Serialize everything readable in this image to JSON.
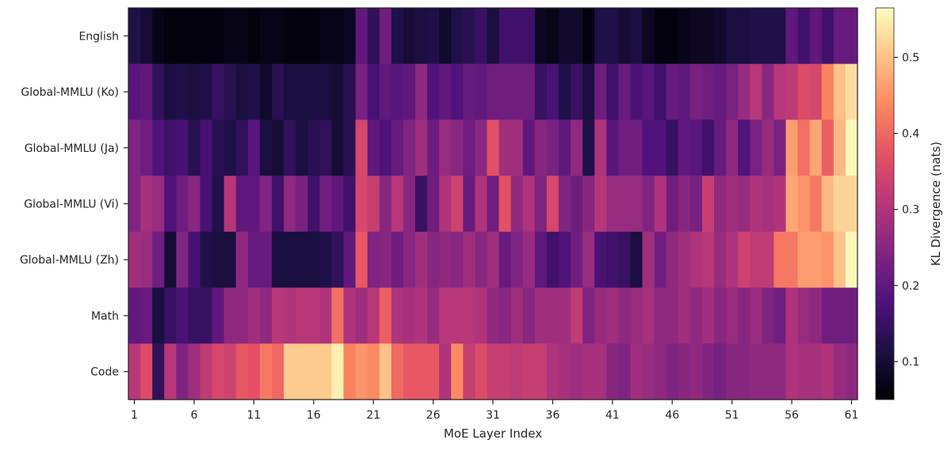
{
  "chart_data": {
    "type": "heatmap",
    "title": "",
    "xlabel": "MoE Layer Index",
    "ylabel": "",
    "colorbar_label": "KL Divergence (nats)",
    "colormap": "magma",
    "colorbar_range": [
      0.05,
      0.565
    ],
    "colorbar_ticks": [
      "0.1",
      "0.2",
      "0.3",
      "0.4",
      "0.5"
    ],
    "colorbar_tick_values": [
      0.1,
      0.2,
      0.3,
      0.4,
      0.5
    ],
    "x_tick_labels": [
      "1",
      "6",
      "11",
      "16",
      "21",
      "26",
      "31",
      "36",
      "41",
      "46",
      "51",
      "56",
      "61"
    ],
    "x_tick_layers": [
      1,
      6,
      11,
      16,
      21,
      26,
      31,
      36,
      41,
      46,
      51,
      56,
      61
    ],
    "n_layers": 61,
    "rows": [
      {
        "label": "English",
        "values": [
          0.12,
          0.1,
          0.07,
          0.06,
          0.06,
          0.06,
          0.06,
          0.06,
          0.07,
          0.07,
          0.06,
          0.07,
          0.07,
          0.06,
          0.06,
          0.06,
          0.07,
          0.07,
          0.08,
          0.2,
          0.14,
          0.22,
          0.12,
          0.1,
          0.11,
          0.12,
          0.09,
          0.12,
          0.13,
          0.15,
          0.11,
          0.16,
          0.16,
          0.16,
          0.08,
          0.07,
          0.09,
          0.09,
          0.06,
          0.12,
          0.12,
          0.1,
          0.11,
          0.08,
          0.06,
          0.06,
          0.07,
          0.08,
          0.08,
          0.09,
          0.11,
          0.11,
          0.12,
          0.12,
          0.12,
          0.2,
          0.16,
          0.2,
          0.16,
          0.21,
          0.21
        ]
      },
      {
        "label": "Global-MMLU (Ko)",
        "values": [
          0.19,
          0.2,
          0.14,
          0.11,
          0.12,
          0.11,
          0.12,
          0.15,
          0.13,
          0.11,
          0.12,
          0.09,
          0.13,
          0.11,
          0.11,
          0.11,
          0.11,
          0.1,
          0.13,
          0.23,
          0.17,
          0.2,
          0.19,
          0.2,
          0.26,
          0.18,
          0.2,
          0.18,
          0.21,
          0.2,
          0.22,
          0.22,
          0.22,
          0.22,
          0.15,
          0.17,
          0.12,
          0.15,
          0.11,
          0.22,
          0.16,
          0.21,
          0.17,
          0.19,
          0.16,
          0.21,
          0.2,
          0.23,
          0.22,
          0.21,
          0.23,
          0.27,
          0.31,
          0.25,
          0.31,
          0.32,
          0.36,
          0.35,
          0.43,
          0.5,
          0.53
        ]
      },
      {
        "label": "Global-MMLU (Ja)",
        "values": [
          0.24,
          0.22,
          0.18,
          0.16,
          0.17,
          0.13,
          0.17,
          0.13,
          0.12,
          0.14,
          0.19,
          0.11,
          0.1,
          0.14,
          0.11,
          0.13,
          0.14,
          0.1,
          0.13,
          0.35,
          0.2,
          0.18,
          0.21,
          0.24,
          0.28,
          0.22,
          0.27,
          0.25,
          0.22,
          0.25,
          0.37,
          0.28,
          0.28,
          0.2,
          0.25,
          0.23,
          0.2,
          0.26,
          0.12,
          0.3,
          0.19,
          0.22,
          0.22,
          0.18,
          0.18,
          0.15,
          0.2,
          0.19,
          0.16,
          0.21,
          0.26,
          0.18,
          0.23,
          0.27,
          0.23,
          0.46,
          0.41,
          0.47,
          0.39,
          0.49,
          0.56
        ]
      },
      {
        "label": "Global-MMLU (Vi)",
        "values": [
          0.24,
          0.29,
          0.27,
          0.18,
          0.22,
          0.25,
          0.17,
          0.12,
          0.31,
          0.2,
          0.2,
          0.24,
          0.16,
          0.26,
          0.23,
          0.16,
          0.22,
          0.2,
          0.16,
          0.35,
          0.33,
          0.25,
          0.31,
          0.25,
          0.15,
          0.22,
          0.3,
          0.34,
          0.21,
          0.3,
          0.22,
          0.37,
          0.26,
          0.3,
          0.24,
          0.35,
          0.24,
          0.22,
          0.25,
          0.31,
          0.27,
          0.27,
          0.27,
          0.24,
          0.3,
          0.22,
          0.25,
          0.23,
          0.33,
          0.26,
          0.28,
          0.27,
          0.3,
          0.29,
          0.3,
          0.47,
          0.45,
          0.42,
          0.49,
          0.52,
          0.52
        ]
      },
      {
        "label": "Global-MMLU (Zh)",
        "values": [
          0.28,
          0.27,
          0.22,
          0.1,
          0.24,
          0.17,
          0.12,
          0.11,
          0.11,
          0.26,
          0.21,
          0.21,
          0.11,
          0.11,
          0.11,
          0.11,
          0.12,
          0.14,
          0.2,
          0.38,
          0.24,
          0.25,
          0.22,
          0.25,
          0.28,
          0.25,
          0.26,
          0.25,
          0.28,
          0.25,
          0.28,
          0.21,
          0.24,
          0.27,
          0.2,
          0.16,
          0.18,
          0.22,
          0.27,
          0.17,
          0.16,
          0.15,
          0.11,
          0.28,
          0.22,
          0.26,
          0.28,
          0.3,
          0.31,
          0.27,
          0.3,
          0.34,
          0.32,
          0.32,
          0.42,
          0.42,
          0.46,
          0.46,
          0.45,
          0.5,
          0.56
        ]
      },
      {
        "label": "Math",
        "values": [
          0.2,
          0.21,
          0.11,
          0.15,
          0.17,
          0.15,
          0.15,
          0.2,
          0.26,
          0.26,
          0.28,
          0.26,
          0.31,
          0.3,
          0.31,
          0.31,
          0.3,
          0.41,
          0.3,
          0.28,
          0.31,
          0.39,
          0.3,
          0.29,
          0.3,
          0.27,
          0.31,
          0.31,
          0.31,
          0.3,
          0.26,
          0.25,
          0.28,
          0.25,
          0.28,
          0.28,
          0.28,
          0.32,
          0.24,
          0.27,
          0.28,
          0.26,
          0.27,
          0.29,
          0.26,
          0.26,
          0.28,
          0.26,
          0.28,
          0.25,
          0.27,
          0.25,
          0.27,
          0.24,
          0.22,
          0.3,
          0.27,
          0.26,
          0.22,
          0.22,
          0.22
        ]
      },
      {
        "label": "Code",
        "values": [
          0.31,
          0.36,
          0.14,
          0.31,
          0.24,
          0.28,
          0.32,
          0.35,
          0.34,
          0.38,
          0.37,
          0.42,
          0.4,
          0.51,
          0.51,
          0.51,
          0.51,
          0.55,
          0.43,
          0.45,
          0.44,
          0.5,
          0.4,
          0.38,
          0.38,
          0.38,
          0.3,
          0.44,
          0.33,
          0.36,
          0.33,
          0.33,
          0.32,
          0.33,
          0.33,
          0.3,
          0.29,
          0.28,
          0.29,
          0.29,
          0.25,
          0.24,
          0.28,
          0.27,
          0.26,
          0.24,
          0.25,
          0.26,
          0.24,
          0.23,
          0.25,
          0.25,
          0.26,
          0.26,
          0.26,
          0.3,
          0.29,
          0.29,
          0.3,
          0.27,
          0.26
        ]
      }
    ]
  }
}
